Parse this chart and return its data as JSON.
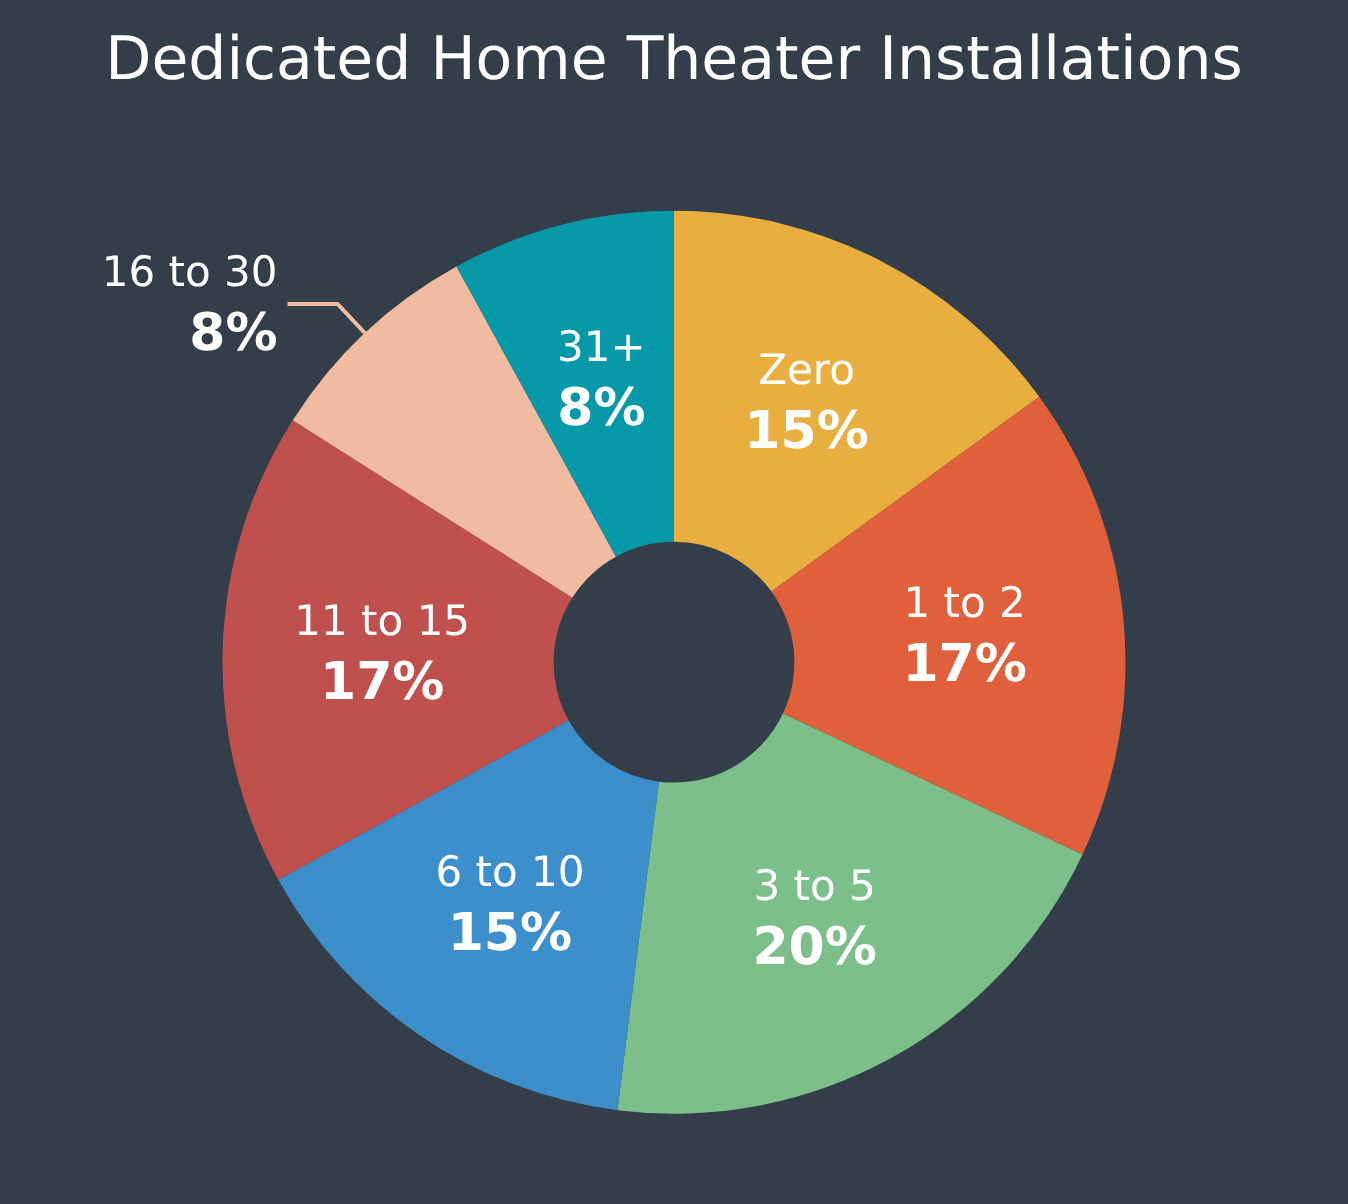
{
  "chart_data": {
    "type": "donut",
    "title": "Dedicated Home Theater Installations",
    "categories": [
      "Zero",
      "1 to 2",
      "3 to 5",
      "6 to 10",
      "11 to 15",
      "16 to 30",
      "31+"
    ],
    "values": [
      15,
      17,
      20,
      15,
      17,
      8,
      8
    ],
    "value_labels": [
      "15%",
      "17%",
      "20%",
      "15%",
      "17%",
      "8%",
      "8%"
    ],
    "colors": [
      "#e8af40",
      "#e0603c",
      "#7dbf8a",
      "#3d8fcc",
      "#c0504d",
      "#f0bba0",
      "#0899a8"
    ],
    "legend": false
  }
}
